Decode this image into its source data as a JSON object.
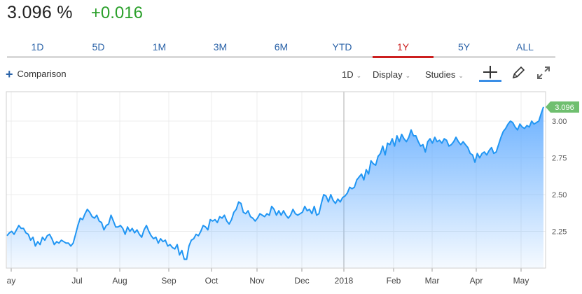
{
  "quote": {
    "price": "3.096 %",
    "change": "+0.016"
  },
  "tabs": [
    {
      "label": "1D",
      "active": false
    },
    {
      "label": "5D",
      "active": false
    },
    {
      "label": "1M",
      "active": false
    },
    {
      "label": "3M",
      "active": false
    },
    {
      "label": "6M",
      "active": false
    },
    {
      "label": "YTD",
      "active": false
    },
    {
      "label": "1Y",
      "active": true
    },
    {
      "label": "5Y",
      "active": false
    },
    {
      "label": "ALL",
      "active": false
    }
  ],
  "toolbar": {
    "comparison_label": "Comparison",
    "interval_label": "1D",
    "display_label": "Display",
    "studies_label": "Studies",
    "icons": [
      "plus-icon",
      "crosshair-icon",
      "pencil-icon",
      "expand-icon"
    ]
  },
  "colors": {
    "line": "#2196f3",
    "fill": "#64adff",
    "up": "#2ba02b",
    "active_tab": "#cc1f1f",
    "last_price_badge": "#6fbf6f"
  },
  "chart_data": {
    "type": "area",
    "ylim": [
      2.0,
      3.2
    ],
    "y_ticks": [
      "2.25",
      "2.50",
      "2.75",
      "3.00"
    ],
    "x_tick_labels": [
      "ay",
      "Jul",
      "Aug",
      "Sep",
      "Oct",
      "Nov",
      "Dec",
      "2018",
      "Feb",
      "Mar",
      "Apr",
      "May"
    ],
    "last_value_label": "3.096",
    "grid": true,
    "series": [
      {
        "values": [
          2.22,
          2.24,
          2.25,
          2.23,
          2.26,
          2.29,
          2.27,
          2.27,
          2.24,
          2.23,
          2.19,
          2.21,
          2.15,
          2.18,
          2.16,
          2.21,
          2.19,
          2.22,
          2.23,
          2.2,
          2.16,
          2.18,
          2.17,
          2.19,
          2.18,
          2.17,
          2.17,
          2.15,
          2.17,
          2.23,
          2.29,
          2.34,
          2.33,
          2.37,
          2.4,
          2.38,
          2.35,
          2.34,
          2.36,
          2.32,
          2.31,
          2.26,
          2.29,
          2.3,
          2.36,
          2.32,
          2.28,
          2.28,
          2.29,
          2.27,
          2.23,
          2.28,
          2.25,
          2.27,
          2.24,
          2.26,
          2.23,
          2.21,
          2.26,
          2.29,
          2.25,
          2.22,
          2.2,
          2.21,
          2.17,
          2.2,
          2.18,
          2.19,
          2.15,
          2.16,
          2.14,
          2.13,
          2.16,
          2.09,
          2.12,
          2.06,
          2.06,
          2.15,
          2.19,
          2.2,
          2.23,
          2.22,
          2.25,
          2.29,
          2.28,
          2.26,
          2.33,
          2.32,
          2.33,
          2.31,
          2.35,
          2.34,
          2.36,
          2.32,
          2.3,
          2.33,
          2.38,
          2.4,
          2.45,
          2.44,
          2.38,
          2.37,
          2.39,
          2.35,
          2.34,
          2.32,
          2.34,
          2.37,
          2.36,
          2.35,
          2.37,
          2.36,
          2.42,
          2.4,
          2.36,
          2.39,
          2.36,
          2.39,
          2.36,
          2.34,
          2.36,
          2.4,
          2.37,
          2.36,
          2.37,
          2.38,
          2.42,
          2.39,
          2.4,
          2.37,
          2.42,
          2.36,
          2.37,
          2.44,
          2.5,
          2.49,
          2.45,
          2.5,
          2.46,
          2.44,
          2.47,
          2.45,
          2.48,
          2.49,
          2.51,
          2.55,
          2.54,
          2.55,
          2.6,
          2.62,
          2.64,
          2.6,
          2.67,
          2.64,
          2.73,
          2.71,
          2.7,
          2.76,
          2.78,
          2.83,
          2.77,
          2.85,
          2.84,
          2.88,
          2.83,
          2.9,
          2.86,
          2.91,
          2.88,
          2.86,
          2.89,
          2.94,
          2.9,
          2.9,
          2.86,
          2.83,
          2.84,
          2.79,
          2.86,
          2.88,
          2.85,
          2.89,
          2.86,
          2.87,
          2.85,
          2.88,
          2.87,
          2.83,
          2.84,
          2.86,
          2.89,
          2.86,
          2.84,
          2.86,
          2.84,
          2.82,
          2.78,
          2.77,
          2.72,
          2.78,
          2.75,
          2.78,
          2.79,
          2.77,
          2.8,
          2.82,
          2.78,
          2.79,
          2.84,
          2.89,
          2.93,
          2.95,
          2.98,
          3.0,
          2.99,
          2.96,
          2.94,
          2.98,
          2.96,
          2.95,
          2.97,
          2.96,
          3.0,
          2.98,
          2.99,
          3.0,
          3.05,
          3.096
        ]
      }
    ]
  }
}
